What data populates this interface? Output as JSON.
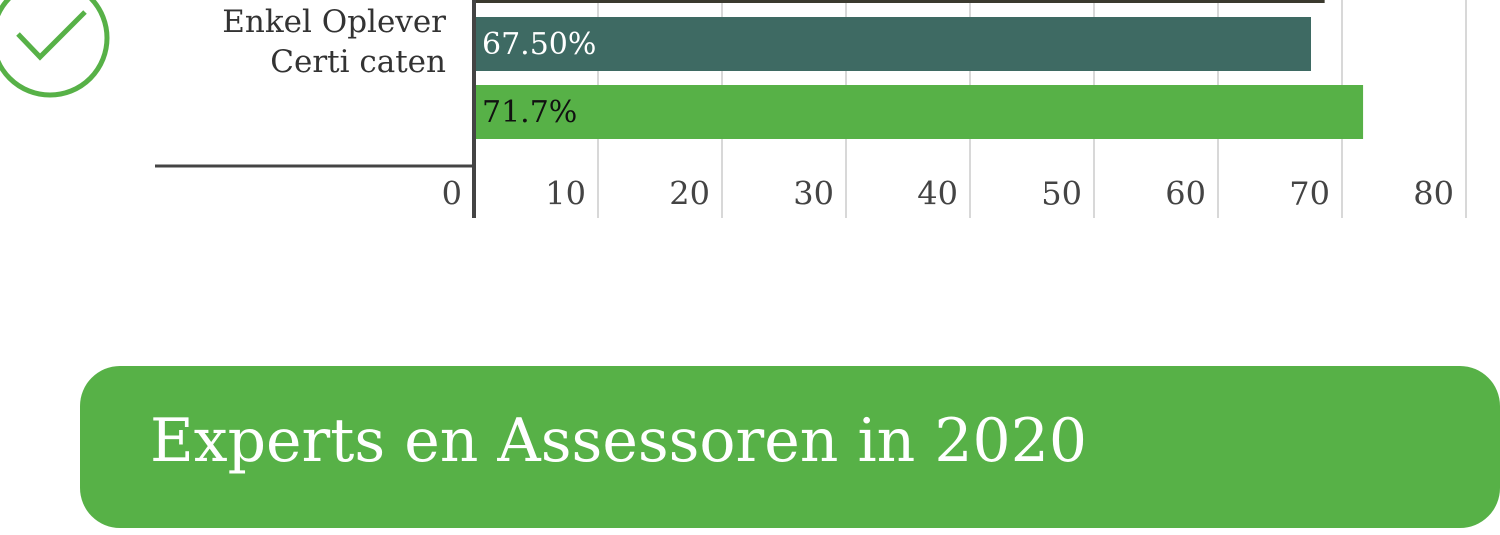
{
  "chart_data": {
    "type": "bar",
    "categories": [
      "Enkel Oplever Certi caten"
    ],
    "series": [
      {
        "color": "#3b3a2f",
        "values": [
          68.6
        ]
      },
      {
        "color": "#3e6a63",
        "values": [
          67.5
        ],
        "value_labels": [
          "67.50%"
        ],
        "label_color": "#ffffff"
      },
      {
        "color": "#57b147",
        "values": [
          71.7
        ],
        "value_labels": [
          "71.7%"
        ],
        "label_color": "#111111"
      }
    ],
    "xlim": [
      0,
      80
    ],
    "xticks": [
      0,
      10,
      20,
      30,
      40,
      50,
      60,
      70,
      80
    ],
    "grid": true
  },
  "heading": "Experts en Assessoren in 2020"
}
